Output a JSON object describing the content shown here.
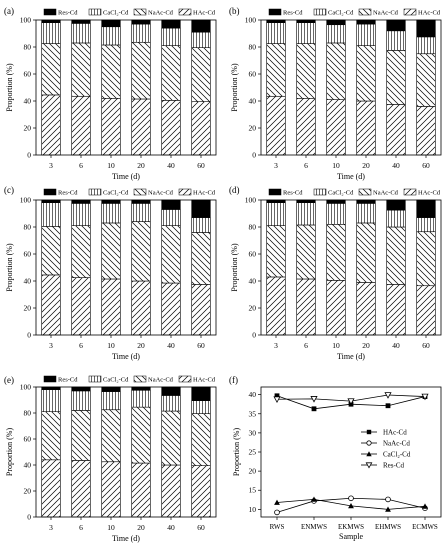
{
  "figure": {
    "legend_labels": [
      "Res-Cd",
      "CaCl₂-Cd",
      "NaAc-Cd",
      "HAc-Cd"
    ]
  },
  "chart_data": [
    {
      "panel": "(a)",
      "type": "bar",
      "stacked": true,
      "categories": [
        "3",
        "6",
        "10",
        "20",
        "40",
        "60"
      ],
      "xlabel": "Time (d)",
      "ylabel": "Proportion (%)",
      "ylim": [
        0,
        100
      ],
      "yticks": [
        0,
        20,
        40,
        60,
        80,
        100
      ],
      "legend_position": "top",
      "series": [
        {
          "name": "HAc-Cd",
          "values": [
            44.5,
            43.5,
            42,
            41.5,
            40.5,
            39.5
          ]
        },
        {
          "name": "NaAc-Cd",
          "values": [
            38,
            39.5,
            39.5,
            42,
            40.5,
            40
          ]
        },
        {
          "name": "CaCl₂-Cd",
          "values": [
            15.5,
            14.5,
            13.5,
            13.5,
            13,
            11.5
          ]
        },
        {
          "name": "Res-Cd",
          "values": [
            2,
            2.5,
            5,
            3,
            6,
            9
          ]
        }
      ]
    },
    {
      "panel": "(b)",
      "type": "bar",
      "stacked": true,
      "categories": [
        "3",
        "6",
        "10",
        "20",
        "40",
        "60"
      ],
      "xlabel": "Time (d)",
      "ylabel": "Proportion (%)",
      "ylim": [
        0,
        100
      ],
      "yticks": [
        0,
        20,
        40,
        60,
        80,
        100
      ],
      "legend_position": "top",
      "series": [
        {
          "name": "HAc-Cd",
          "values": [
            43.5,
            42,
            41,
            40,
            37.5,
            36
          ]
        },
        {
          "name": "NaAc-Cd",
          "values": [
            39,
            40.5,
            42,
            41,
            40,
            39
          ]
        },
        {
          "name": "CaCl₂-Cd",
          "values": [
            15.5,
            15.5,
            13.5,
            16,
            14.5,
            12.5
          ]
        },
        {
          "name": "Res-Cd",
          "values": [
            2,
            2,
            3.5,
            3,
            8,
            12.5
          ]
        }
      ]
    },
    {
      "panel": "(c)",
      "type": "bar",
      "stacked": true,
      "categories": [
        "3",
        "6",
        "10",
        "20",
        "40",
        "60"
      ],
      "xlabel": "Time (d)",
      "ylabel": "Proportion (%)",
      "ylim": [
        0,
        100
      ],
      "yticks": [
        0,
        20,
        40,
        60,
        80,
        100
      ],
      "legend_position": "top",
      "series": [
        {
          "name": "HAc-Cd",
          "values": [
            44.5,
            42.5,
            41.5,
            40,
            38.5,
            37.5
          ]
        },
        {
          "name": "NaAc-Cd",
          "values": [
            36,
            38.5,
            41.5,
            44,
            42.5,
            38.5
          ]
        },
        {
          "name": "CaCl₂-Cd",
          "values": [
            17.5,
            16.5,
            14.5,
            13.5,
            12,
            11
          ]
        },
        {
          "name": "Res-Cd",
          "values": [
            2,
            2.5,
            2.5,
            2.5,
            7,
            13
          ]
        }
      ]
    },
    {
      "panel": "(d)",
      "type": "bar",
      "stacked": true,
      "categories": [
        "3",
        "6",
        "10",
        "20",
        "40",
        "60"
      ],
      "xlabel": "Time (d)",
      "ylabel": "Proportion (%)",
      "ylim": [
        0,
        100
      ],
      "yticks": [
        0,
        20,
        40,
        60,
        80,
        100
      ],
      "legend_position": "top",
      "series": [
        {
          "name": "HAc-Cd",
          "values": [
            43,
            41.5,
            40.5,
            39,
            37.5,
            36.5
          ]
        },
        {
          "name": "NaAc-Cd",
          "values": [
            38,
            40,
            41.5,
            44,
            42.5,
            40
          ]
        },
        {
          "name": "CaCl₂-Cd",
          "values": [
            17,
            16.5,
            15.5,
            14.5,
            12.5,
            10.5
          ]
        },
        {
          "name": "Res-Cd",
          "values": [
            2,
            2,
            2.5,
            2.5,
            7.5,
            13
          ]
        }
      ]
    },
    {
      "panel": "(e)",
      "type": "bar",
      "stacked": true,
      "categories": [
        "3",
        "6",
        "10",
        "20",
        "40",
        "60"
      ],
      "xlabel": "Time (d)",
      "ylabel": "Proportion (%)",
      "ylim": [
        0,
        100
      ],
      "yticks": [
        0,
        20,
        40,
        60,
        80,
        100
      ],
      "legend_position": "top",
      "series": [
        {
          "name": "HAc-Cd",
          "values": [
            44,
            43.5,
            42.5,
            41.5,
            40,
            39.5
          ]
        },
        {
          "name": "NaAc-Cd",
          "values": [
            37,
            38.5,
            40,
            43,
            41.5,
            40
          ]
        },
        {
          "name": "CaCl₂-Cd",
          "values": [
            17,
            15,
            14,
            13,
            12,
            10
          ]
        },
        {
          "name": "Res-Cd",
          "values": [
            2,
            3,
            3.5,
            2.5,
            6.5,
            10.5
          ]
        }
      ]
    },
    {
      "panel": "(f)",
      "type": "line",
      "categories": [
        "RWS",
        "ENMWS",
        "EKMWS",
        "EHMWS",
        "ECMWS"
      ],
      "xlabel": "Sample",
      "ylabel": "Proportion (%)",
      "ylim": [
        8,
        42
      ],
      "yticks": [
        10,
        15,
        20,
        25,
        30,
        35,
        40
      ],
      "legend_position": "right",
      "series": [
        {
          "name": "HAc-Cd",
          "marker": "square",
          "values": [
            39.7,
            36.3,
            37.5,
            37.1,
            39.5
          ]
        },
        {
          "name": "NaAc-Cd",
          "marker": "circle",
          "values": [
            9.2,
            12.2,
            12.9,
            12.6,
            10.3
          ]
        },
        {
          "name": "CaCl₂-Cd",
          "marker": "triangle",
          "values": [
            11.8,
            12.6,
            10.9,
            10.0,
            10.8
          ]
        },
        {
          "name": "Res-Cd",
          "marker": "down-triangle",
          "values": [
            38.8,
            38.9,
            38.3,
            39.9,
            39.5
          ]
        }
      ]
    }
  ]
}
